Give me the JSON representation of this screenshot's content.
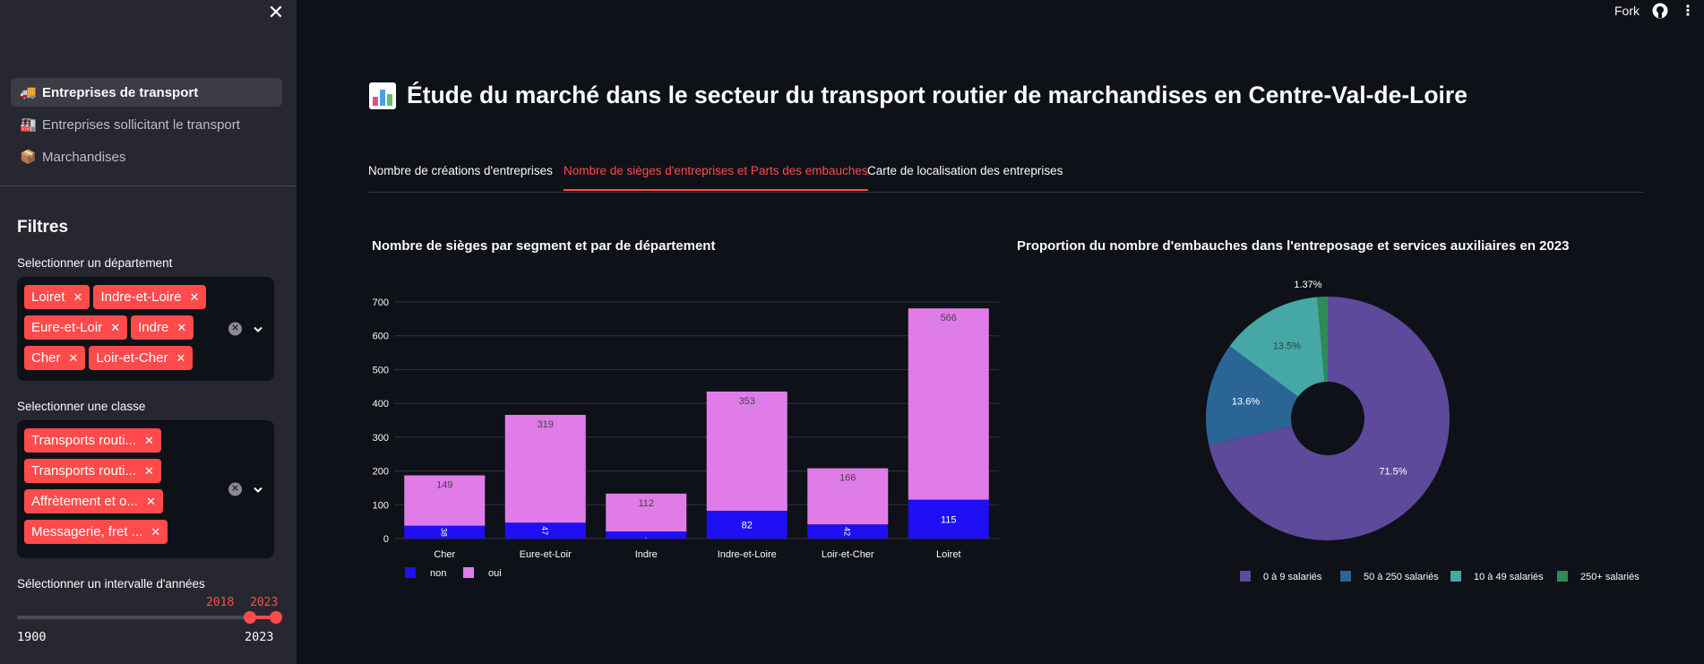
{
  "sidebar": {
    "nav": [
      {
        "label": "Entreprises de transport",
        "icon": "truck-icon",
        "glyph": "🚚",
        "active": true
      },
      {
        "label": "Entreprises sollicitant le transport",
        "icon": "factory-icon",
        "glyph": "🏭",
        "active": false
      },
      {
        "label": "Marchandises",
        "icon": "package-icon",
        "glyph": "📦",
        "active": false
      }
    ],
    "filters_title": "Filtres",
    "departement": {
      "label": "Selectionner un département",
      "selected": [
        "Loiret",
        "Indre-et-Loire",
        "Eure-et-Loir",
        "Indre",
        "Cher",
        "Loir-et-Cher"
      ]
    },
    "classe": {
      "label": "Selectionner une classe",
      "selected": [
        "Transports routi...",
        "Transports routi...",
        "Affrètement et o...",
        "Messagerie, fret ..."
      ]
    },
    "years": {
      "label": "Sélectionner un intervalle d'années",
      "min": "1900",
      "max": "2023",
      "low": "2018",
      "high": "2023"
    }
  },
  "topbar": {
    "fork": "Fork"
  },
  "page": {
    "title": "Étude du marché dans le secteur du transport routier de marchandises en Centre-Val-de-Loire"
  },
  "tabs": [
    {
      "label": "Nombre de créations d'entreprises",
      "active": false
    },
    {
      "label": "Nombre de sièges d'entreprises et Parts des embauches",
      "active": true
    },
    {
      "label": "Carte de localisation des entreprises",
      "active": false
    }
  ],
  "colors": {
    "accent": "#ff4b4b",
    "non": "#1f0ff5",
    "oui": "#e07ce8",
    "pie": [
      "#5e4a9a",
      "#2a6596",
      "#45a8a5",
      "#2e8b57"
    ]
  },
  "chart_data": [
    {
      "type": "bar",
      "title": "Nombre de sièges par segment et par de département",
      "categories": [
        "Cher",
        "Eure-et-Loir",
        "Indre",
        "Indre-et-Loire",
        "Loir-et-Cher",
        "Loiret"
      ],
      "series": [
        {
          "name": "non",
          "values": [
            38,
            47,
            21,
            82,
            42,
            115
          ],
          "labels": [
            "38",
            "47",
            ".",
            "82",
            "42",
            "115"
          ]
        },
        {
          "name": "oui",
          "values": [
            149,
            319,
            112,
            353,
            166,
            566
          ],
          "labels": [
            "149",
            "319",
            "112",
            "353",
            "166",
            "566"
          ]
        }
      ],
      "yticks": [
        "0",
        "100",
        "200",
        "300",
        "400",
        "500",
        "600",
        "700"
      ],
      "ylim": [
        0,
        700
      ],
      "stacked": true,
      "grid": true,
      "legend_position": "bottom-left"
    },
    {
      "type": "pie",
      "title": "Proportion du nombre d'embauches dans l'entreposage et services auxiliaires en 2023",
      "slices": [
        {
          "label": "0 à 9 salariés",
          "value": 71.5,
          "text": "71.5%"
        },
        {
          "label": "50 à 250 salariés",
          "value": 13.6,
          "text": "13.6%"
        },
        {
          "label": "10 à 49 salariés",
          "value": 13.5,
          "text": "13.5%"
        },
        {
          "label": "250+ salariés",
          "value": 1.37,
          "text": "1.37%"
        }
      ],
      "donut": true,
      "legend_position": "bottom"
    }
  ]
}
